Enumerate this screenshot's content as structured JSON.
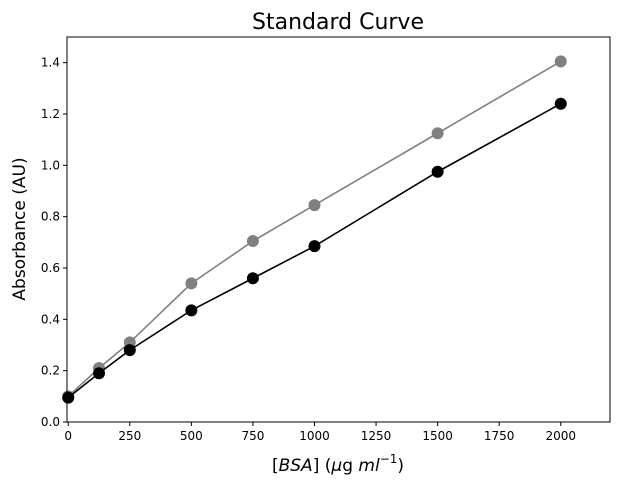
{
  "chart_data": {
    "type": "line",
    "title": "Standard Curve",
    "xlabel_parts": {
      "bracket_open": "[",
      "var": "BSA",
      "bracket_close": "]",
      "unit_open": " (",
      "mu": "μ",
      "g": "g ",
      "ml": "ml",
      "exp": "−1",
      "unit_close": ")"
    },
    "ylabel": "Absorbance (AU)",
    "xlim": [
      -5,
      2200
    ],
    "ylim": [
      0,
      1.5
    ],
    "xticks": [
      0,
      250,
      500,
      750,
      1000,
      1250,
      1500,
      1750,
      2000
    ],
    "yticks": [
      0.0,
      0.2,
      0.4,
      0.6,
      0.8,
      1.0,
      1.2,
      1.4
    ],
    "ytick_labels": [
      "0.0",
      "0.2",
      "0.4",
      "0.6",
      "0.8",
      "1.0",
      "1.2",
      "1.4"
    ],
    "grid": false,
    "series": [
      {
        "color": "#808080",
        "x": [
          0,
          125,
          250,
          500,
          750,
          1000,
          1500,
          2000
        ],
        "y": [
          0.1,
          0.21,
          0.31,
          0.54,
          0.705,
          0.845,
          1.125,
          1.405
        ]
      },
      {
        "color": "#000000",
        "x": [
          0,
          125,
          250,
          500,
          750,
          1000,
          1500,
          2000
        ],
        "y": [
          0.095,
          0.19,
          0.28,
          0.435,
          0.56,
          0.685,
          0.975,
          1.24
        ]
      }
    ]
  }
}
